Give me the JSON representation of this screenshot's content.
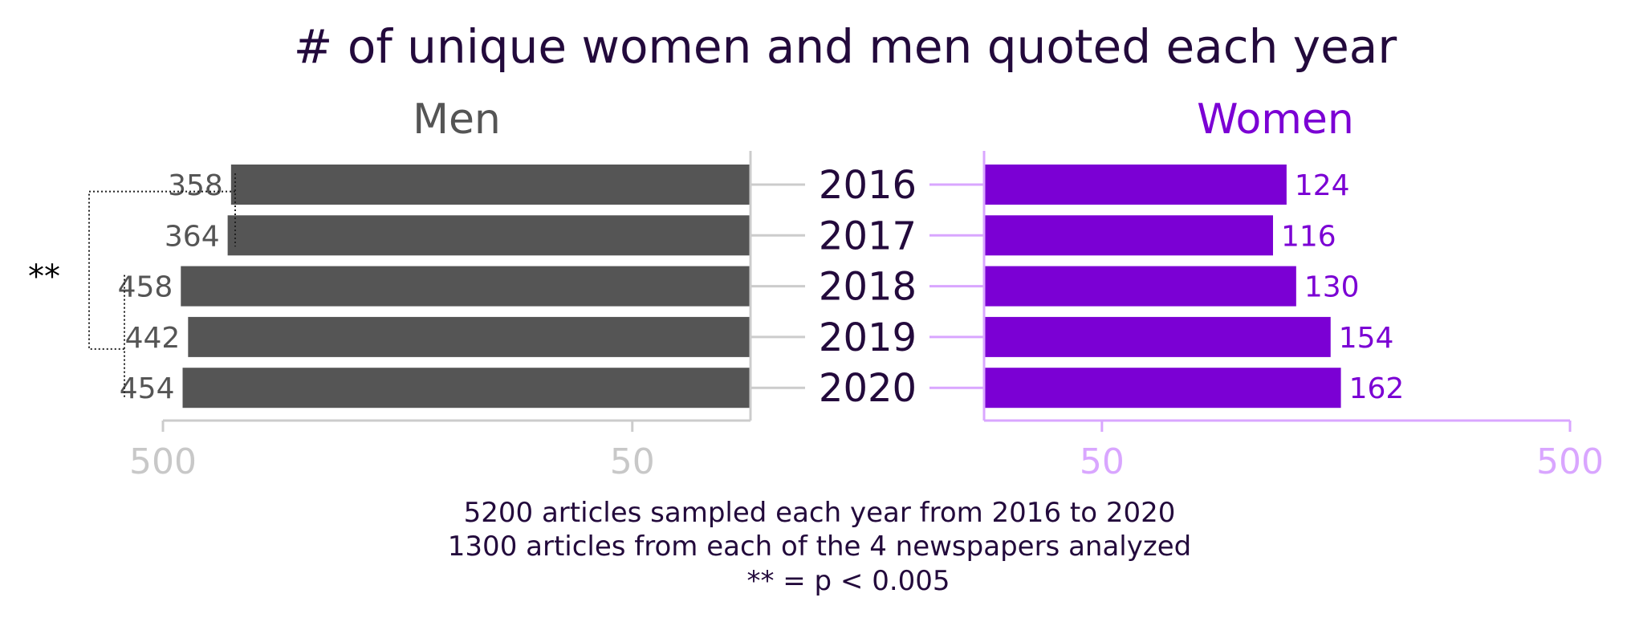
{
  "chart_data": {
    "type": "bar",
    "orientation": "horizontal-butterfly",
    "title": "# of unique women and men quoted each year",
    "categories": [
      "2016",
      "2017",
      "2018",
      "2019",
      "2020"
    ],
    "series": [
      {
        "name": "Men",
        "values": [
          358,
          364,
          458,
          442,
          454
        ],
        "value_labels": [
          "358",
          "364",
          "458",
          "442",
          "454"
        ],
        "color": "#555555",
        "label_color": "#555555"
      },
      {
        "name": "Women",
        "values": [
          124,
          116,
          130,
          154,
          162
        ],
        "value_labels": [
          "124",
          "116",
          "130",
          "154",
          "162"
        ],
        "color": "#7b00d4",
        "label_color": "#7b00d4"
      }
    ],
    "axis_ticks": [
      "500",
      "50"
    ],
    "axis_tick_values": [
      500,
      50
    ],
    "xlim": [
      28,
      500
    ],
    "scale": "log",
    "grid": false,
    "colors": {
      "men_axis": "#cccccc",
      "women_axis": "#d9a6ff",
      "men_tick": "#c8c8c8",
      "women_tick": "#d9a6ff"
    },
    "significance": {
      "marker": "**",
      "groups": [
        [
          "2016",
          "2017"
        ],
        [
          "2018",
          "2019",
          "2020"
        ]
      ]
    },
    "footnotes": [
      "5200 articles sampled each year from 2016 to 2020",
      "1300 articles from each of the 4 newspapers analyzed",
      "** = p < 0.005"
    ]
  }
}
